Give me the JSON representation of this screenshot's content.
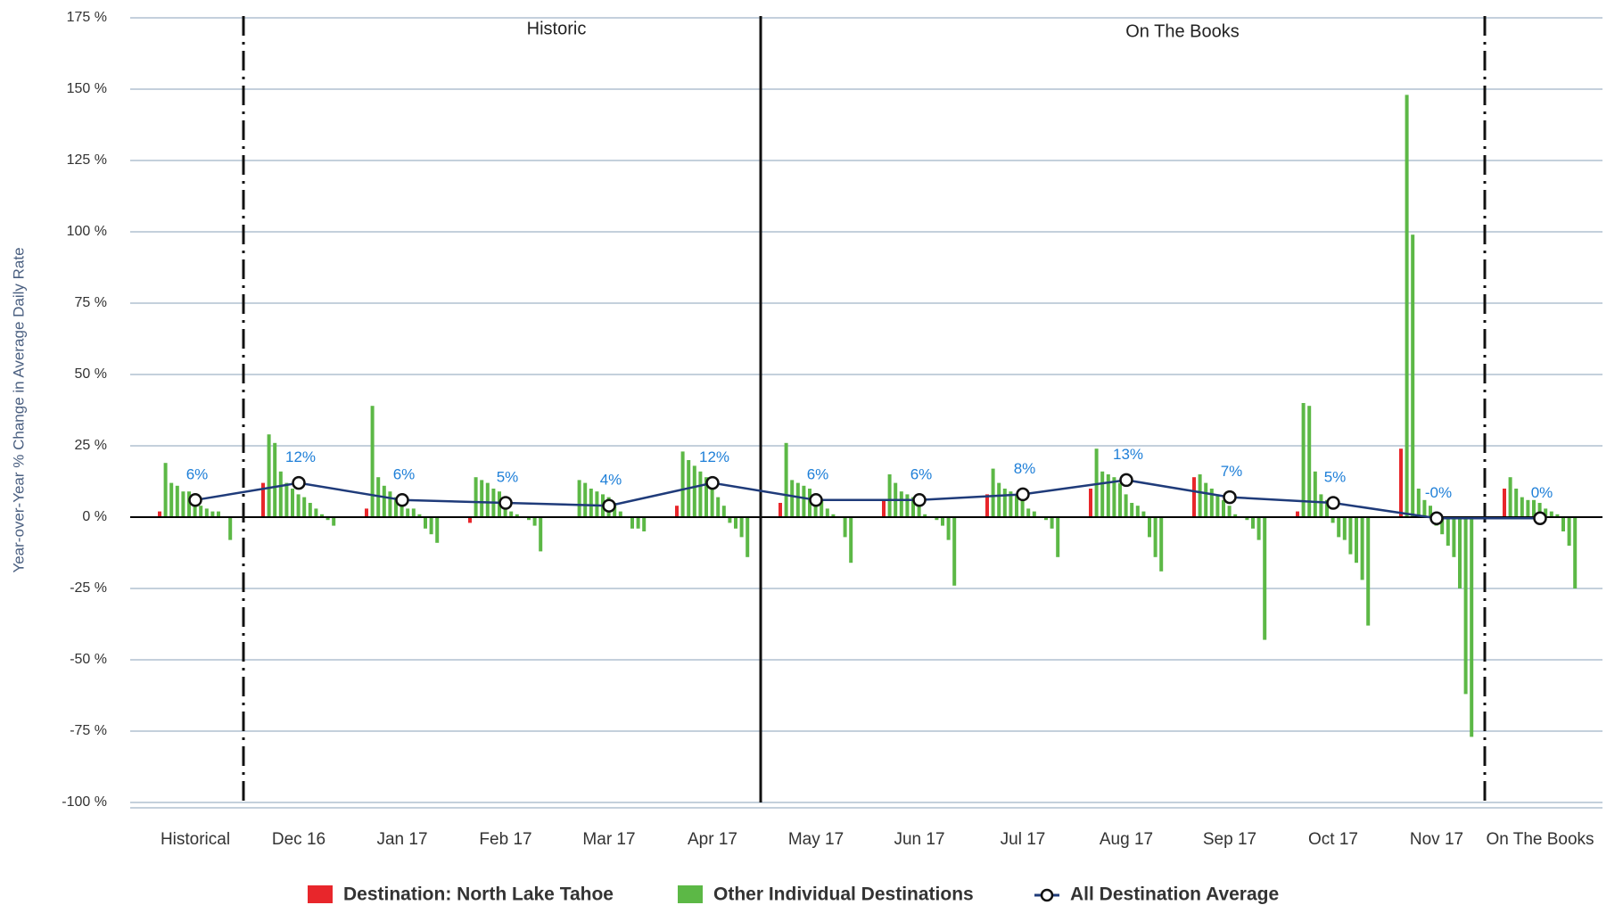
{
  "chart_data": {
    "type": "bar",
    "ylabel": "Year-over-Year % Change in Average Daily Rate",
    "ylim": [
      -100,
      175
    ],
    "yticks": [
      {
        "value": 175,
        "label": "175 %"
      },
      {
        "value": 150,
        "label": "150 %"
      },
      {
        "value": 125,
        "label": "125 %"
      },
      {
        "value": 100,
        "label": "100 %"
      },
      {
        "value": 75,
        "label": "75 %"
      },
      {
        "value": 50,
        "label": "50 %"
      },
      {
        "value": 25,
        "label": "25 %"
      },
      {
        "value": 0,
        "label": "0 %"
      },
      {
        "value": -25,
        "label": "-25 %"
      },
      {
        "value": -50,
        "label": "-50 %"
      },
      {
        "value": -75,
        "label": "-75 %"
      },
      {
        "value": -100,
        "label": "-100 %"
      }
    ],
    "grid": true,
    "annotations": [
      "Historic",
      "On The Books"
    ],
    "categories": [
      "Historical",
      "Dec 16",
      "Jan 17",
      "Feb 17",
      "Mar 17",
      "Apr 17",
      "May 17",
      "Jun 17",
      "Jul 17",
      "Aug 17",
      "Sep 17",
      "Oct 17",
      "Nov 17",
      "On The Books"
    ],
    "series": [
      {
        "name": "Destination: North Lake Tahoe",
        "color": "#e8262b",
        "values": [
          2,
          12,
          3,
          -2,
          0,
          4,
          5,
          6,
          8,
          10,
          14,
          2,
          24,
          10
        ]
      },
      {
        "name": "Other Individual Destinations",
        "color": "#5cb846",
        "values": [
          [
            19,
            12,
            11,
            9,
            9,
            6,
            4,
            3,
            2,
            2,
            0,
            -8
          ],
          [
            29,
            26,
            16,
            12,
            10,
            8,
            7,
            5,
            3,
            1,
            -1,
            -3
          ],
          [
            39,
            14,
            11,
            9,
            7,
            4,
            3,
            3,
            1,
            -4,
            -6,
            -9
          ],
          [
            14,
            13,
            12,
            10,
            9,
            6,
            2,
            1,
            0,
            -1,
            -3,
            -12
          ],
          [
            13,
            12,
            10,
            9,
            8,
            7,
            5,
            2,
            0,
            -4,
            -4,
            -5
          ],
          [
            23,
            20,
            18,
            16,
            14,
            11,
            7,
            4,
            -2,
            -4,
            -7,
            -14
          ],
          [
            26,
            13,
            12,
            11,
            10,
            8,
            6,
            3,
            1,
            0,
            -7,
            -16
          ],
          [
            15,
            12,
            9,
            8,
            7,
            4,
            1,
            0,
            -1,
            -3,
            -8,
            -24
          ],
          [
            17,
            12,
            10,
            9,
            8,
            6,
            3,
            2,
            0,
            -1,
            -4,
            -14
          ],
          [
            24,
            16,
            15,
            14,
            12,
            8,
            5,
            4,
            2,
            -7,
            -14,
            -19
          ],
          [
            15,
            12,
            10,
            8,
            6,
            4,
            1,
            0,
            -1,
            -4,
            -8,
            -43
          ],
          [
            40,
            39,
            16,
            8,
            6,
            -2,
            -7,
            -8,
            -13,
            -16,
            -22,
            -38
          ],
          [
            148,
            99,
            10,
            6,
            4,
            -3,
            -6,
            -10,
            -14,
            -25,
            -62,
            -77
          ],
          [
            14,
            10,
            7,
            6,
            6,
            5,
            3,
            2,
            1,
            -5,
            -10,
            -25
          ]
        ]
      },
      {
        "name": "All Destination Average",
        "color": "#1f3b7a",
        "values": [
          6,
          12,
          6,
          5,
          4,
          12,
          6,
          6,
          8,
          13,
          7,
          5,
          -0.4,
          -0.4
        ],
        "value_labels": [
          "6%",
          "12%",
          "6%",
          "5%",
          "4%",
          "12%",
          "6%",
          "6%",
          "8%",
          "13%",
          "7%",
          "5%",
          "-0%",
          "0%"
        ]
      }
    ]
  }
}
